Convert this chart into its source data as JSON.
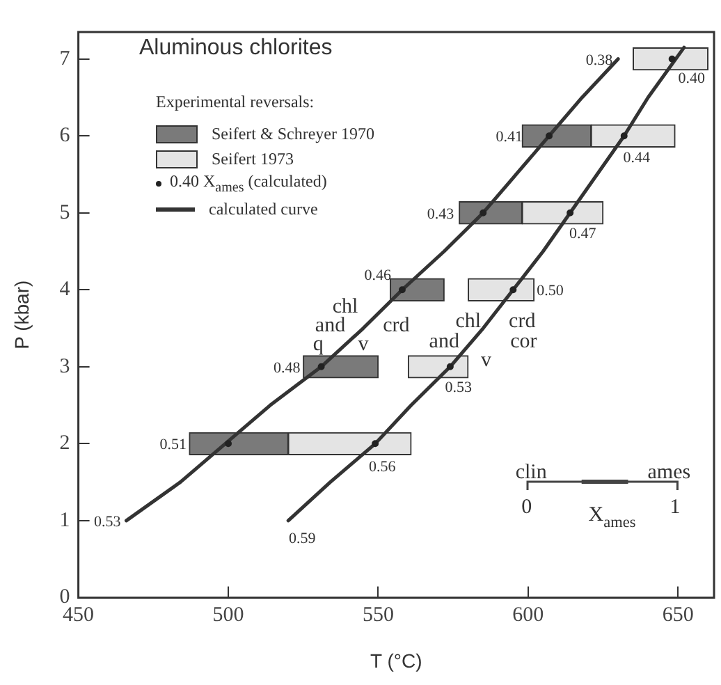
{
  "chart_data": {
    "type": "bar",
    "orientation": "horizontal",
    "title": "Aluminous chlorites",
    "legend_title": "Experimental reversals:",
    "xlabel": "T (°C)",
    "ylabel": "P (kbar)",
    "xlim": [
      450,
      662
    ],
    "xticks": [
      450,
      500,
      550,
      600,
      650
    ],
    "ylim": [
      0,
      7.35
    ],
    "yticks": [
      0,
      1,
      2,
      3,
      4,
      5,
      6,
      7
    ],
    "grid": false,
    "legend": "top left",
    "series": [
      {
        "name": "Seifert & Schreyer 1970",
        "color": "#7a7a7a",
        "x": [
          2,
          3,
          4,
          5,
          6
        ],
        "base": [
          487,
          525,
          554,
          577,
          598
        ],
        "values": [
          33,
          25,
          18,
          21,
          23
        ]
      },
      {
        "name": "Seifert 1973",
        "color": "#e4e4e4",
        "x": [
          2,
          3,
          4,
          5,
          6,
          7
        ],
        "base": [
          520,
          560,
          580,
          598,
          621,
          635
        ],
        "values": [
          41,
          20,
          22,
          27,
          28,
          25
        ]
      },
      {
        "name": "0.40 X$_{ames}$ (calculated)",
        "type": "scatter",
        "marker": "circle",
        "color": "#222222",
        "x": [
          2,
          3,
          4,
          5,
          6,
          2,
          3,
          4,
          5,
          6,
          7
        ],
        "values": [
          500,
          531,
          558,
          585,
          607,
          549,
          574,
          595,
          614,
          632,
          648
        ]
      },
      {
        "name": "calculated curve",
        "type": "line",
        "marker": "none",
        "color": "#333333",
        "x": [
          1,
          1.5,
          2,
          2.5,
          3,
          3.5,
          4,
          4.5,
          5,
          5.5,
          6,
          6.5,
          7
        ],
        "values": [
          466,
          484,
          499,
          514,
          531,
          545,
          558,
          572,
          585,
          596,
          607,
          618,
          630
        ]
      },
      {
        "type": "line",
        "marker": "none",
        "color": "#333333",
        "x": [
          1,
          1.5,
          2,
          2.5,
          3,
          3.5,
          4,
          4.5,
          5,
          5.5,
          6,
          6.5,
          7.15
        ],
        "values": [
          520,
          534,
          549,
          561,
          574,
          585,
          595,
          605,
          614,
          623,
          632,
          640,
          652
        ]
      }
    ],
    "annotations": [
      {
        "text": "0.51",
        "x": 500,
        "y": 2
      },
      {
        "text": "0.48",
        "x": 531,
        "y": 3
      },
      {
        "text": "0.46",
        "x": 558,
        "y": 4
      },
      {
        "text": "0.43",
        "x": 585,
        "y": 5
      },
      {
        "text": "0.41",
        "x": 607,
        "y": 6
      },
      {
        "text": "0.56",
        "x": 549,
        "y": 2
      },
      {
        "text": "0.53",
        "x": 574,
        "y": 3
      },
      {
        "text": "0.50",
        "x": 595,
        "y": 4
      },
      {
        "text": "0.47",
        "x": 614,
        "y": 5
      },
      {
        "text": "0.44",
        "x": 632,
        "y": 6
      },
      {
        "text": "0.40",
        "x": 648,
        "y": 7
      },
      {
        "text": "0.53",
        "x": 466,
        "y": 1
      },
      {
        "text": "0.59",
        "x": 520,
        "y": 1
      },
      {
        "text": "0.38",
        "x": 630,
        "y": 7
      },
      "chl",
      "and",
      "q",
      "crd",
      "v",
      "chl",
      "and",
      "crd",
      "cor",
      "v",
      "clin",
      "ames",
      "0",
      "1",
      "X$_{ames}$"
    ]
  }
}
